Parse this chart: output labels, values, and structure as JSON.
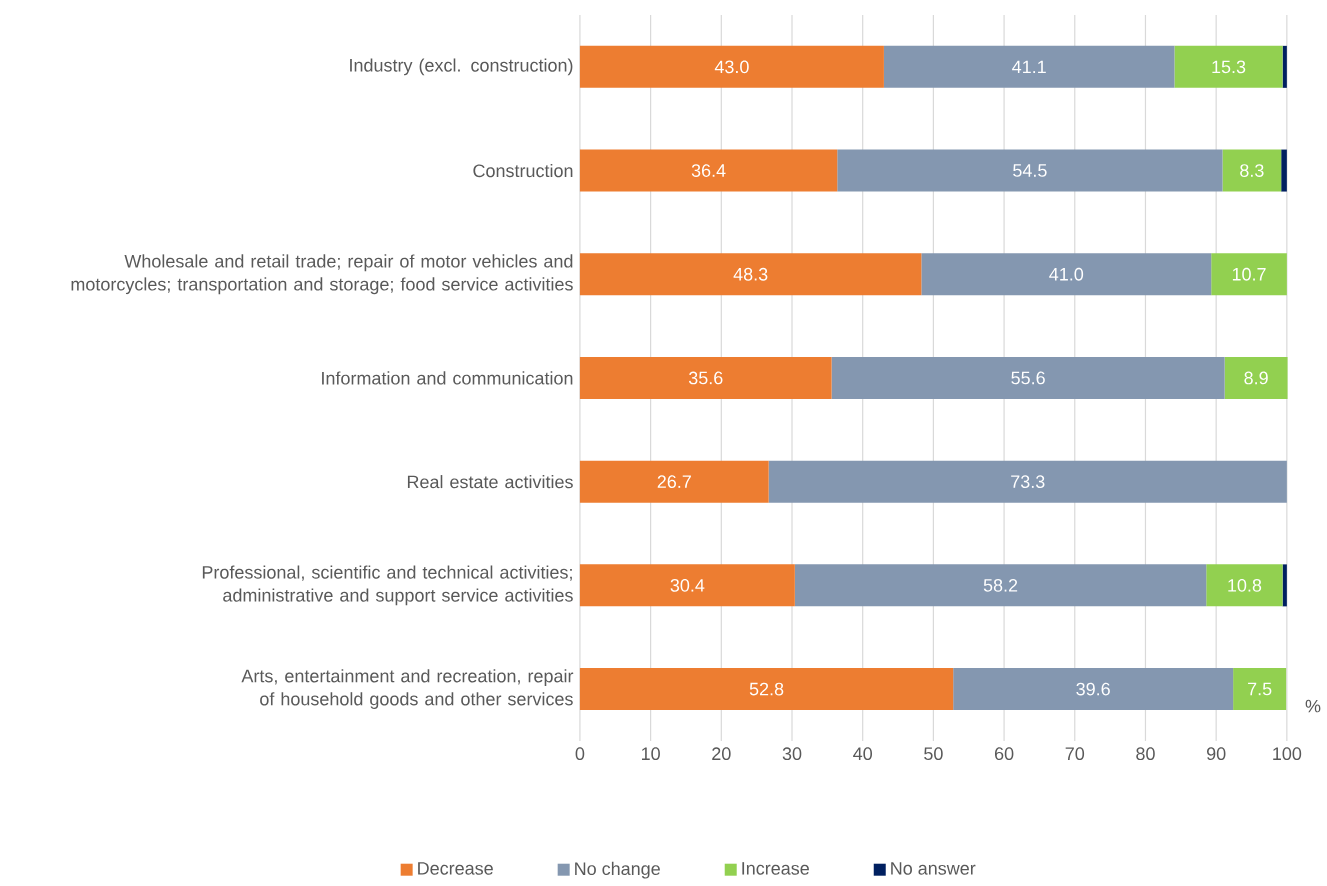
{
  "chart_data": {
    "type": "bar",
    "orientation": "horizontal",
    "stacked": true,
    "xlabel": "%",
    "categories": [
      "Industry (excl. construction)",
      "Construction",
      "Wholesale and retail trade; repair of motor vehicles and motorcycles; transportation and storage; food service activities",
      "Information and communication",
      "Real estate activities",
      "Professional, scientific and technical activities; administrative and support service activities",
      "Arts, entertainment and recreation, repair of household goods and other services"
    ],
    "series": [
      {
        "name": "Decrease",
        "color": "#ed7d31",
        "values": [
          43.0,
          36.4,
          48.3,
          35.6,
          26.7,
          30.4,
          52.8
        ],
        "value_labels": [
          "43.0",
          "36.4",
          "48.3",
          "35.6",
          "26.7",
          "30.4",
          "52.8"
        ]
      },
      {
        "name": "No change",
        "color": "#8497b0",
        "values": [
          41.1,
          54.5,
          41.0,
          55.6,
          73.3,
          58.2,
          39.6
        ],
        "value_labels": [
          "41.1",
          "54.5",
          "41.0",
          "55.6",
          "73.3",
          "58.2",
          "39.6"
        ]
      },
      {
        "name": "Increase",
        "color": "#92d050",
        "values": [
          15.3,
          8.3,
          10.7,
          8.9,
          0,
          10.8,
          7.5
        ],
        "value_labels": [
          "15.3",
          "8.3",
          "10.7",
          "8.9",
          null,
          "10.8",
          "7.5"
        ]
      },
      {
        "name": "No answer",
        "color": "#002060",
        "values": [
          0.6,
          0.8,
          0,
          0,
          0,
          0.6,
          0
        ],
        "value_labels": [
          null,
          null,
          null,
          null,
          null,
          null,
          null
        ]
      }
    ],
    "xlim": [
      0,
      100
    ],
    "xticks": [
      0,
      10,
      20,
      30,
      40,
      50,
      60,
      70,
      80,
      90,
      100
    ],
    "grid": "x",
    "legend": "bottom"
  }
}
